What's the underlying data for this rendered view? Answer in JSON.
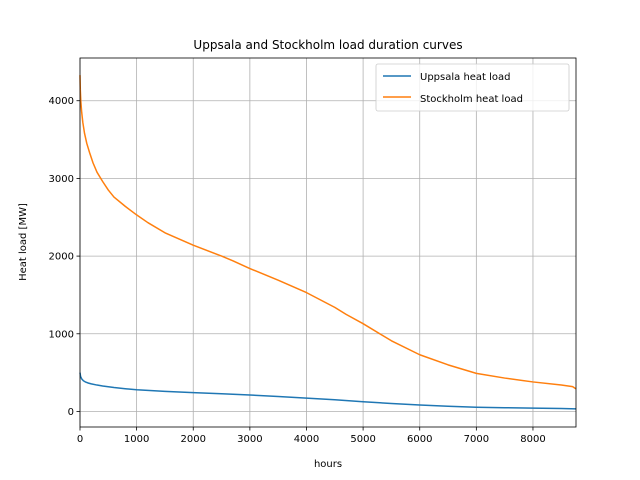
{
  "chart_data": {
    "type": "line",
    "title": "Uppsala and Stockholm load duration curves",
    "xlabel": "hours",
    "ylabel": "Heat load [MW]",
    "xlim": [
      0,
      8760
    ],
    "ylim": [
      -200,
      4550
    ],
    "xticks": [
      0,
      1000,
      2000,
      3000,
      4000,
      5000,
      6000,
      7000,
      8000
    ],
    "yticks": [
      0,
      1000,
      2000,
      3000,
      4000
    ],
    "grid": true,
    "legend_position": "top-right",
    "series": [
      {
        "name": "Uppsala heat load",
        "color": "#1f77b4",
        "x": [
          0,
          10,
          30,
          60,
          100,
          150,
          200,
          300,
          400,
          600,
          800,
          1000,
          1500,
          2000,
          2500,
          3000,
          3500,
          4000,
          4500,
          5000,
          5500,
          6000,
          6500,
          7000,
          7500,
          8000,
          8500,
          8760
        ],
        "y": [
          500,
          450,
          420,
          395,
          378,
          365,
          355,
          340,
          328,
          308,
          293,
          280,
          258,
          242,
          228,
          212,
          192,
          172,
          150,
          125,
          103,
          83,
          67,
          55,
          48,
          43,
          38,
          33
        ]
      },
      {
        "name": "Stockholm heat load",
        "color": "#ff7f0e",
        "x": [
          0,
          5,
          15,
          30,
          50,
          80,
          120,
          170,
          230,
          300,
          400,
          500,
          600,
          800,
          1000,
          1200,
          1500,
          2000,
          2500,
          2700,
          3000,
          3500,
          4000,
          4500,
          4700,
          5000,
          5500,
          6000,
          6500,
          7000,
          7500,
          8000,
          8500,
          8700,
          8760
        ],
        "y": [
          4330,
          4150,
          3990,
          3850,
          3720,
          3580,
          3450,
          3330,
          3200,
          3080,
          2960,
          2850,
          2760,
          2640,
          2530,
          2430,
          2300,
          2140,
          2000,
          1940,
          1840,
          1690,
          1530,
          1340,
          1250,
          1130,
          910,
          730,
          600,
          490,
          430,
          380,
          340,
          320,
          290
        ]
      }
    ]
  }
}
